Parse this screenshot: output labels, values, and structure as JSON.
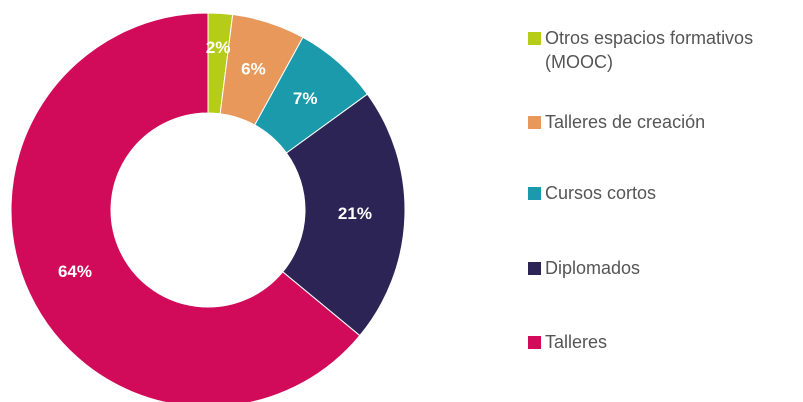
{
  "chart_data": {
    "type": "donut",
    "categories": [
      "Otros espacios formativos (MOOC)",
      "Talleres de creación",
      "Cursos cortos",
      "Diplomados",
      "Talleres"
    ],
    "values": [
      2,
      6,
      7,
      21,
      64
    ],
    "value_labels": [
      "2%",
      "6%",
      "7%",
      "21%",
      "64%"
    ],
    "colors": [
      "#b5cc18",
      "#e8985a",
      "#1a9aaa",
      "#2b2454",
      "#d10a5a"
    ]
  }
}
